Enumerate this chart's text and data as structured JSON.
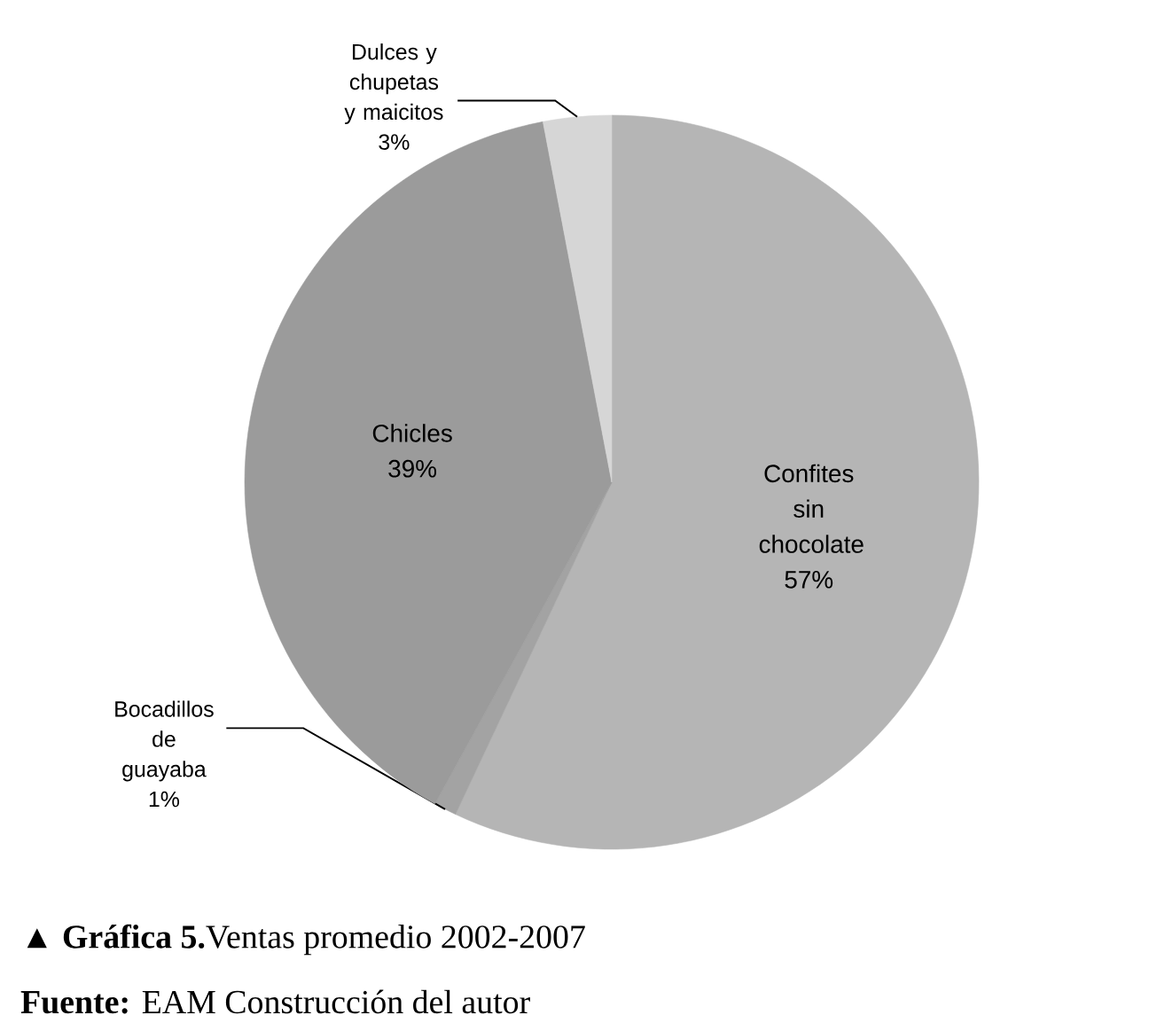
{
  "chart_data": {
    "type": "pie",
    "title": "▲ **Gráfica 5.**Ventas promedio 2002-2007",
    "categories": [
      "Confites sin chocolate",
      "Bocadillos de guayaba",
      "Chicles",
      "Dulces y chupetas y maicitos"
    ],
    "values": [
      57,
      1,
      39,
      3
    ],
    "value_labels": [
      "57%",
      "1%",
      "39%",
      "3%"
    ],
    "colors": [
      "#b5b5b5",
      "#a3a3a3",
      "#9b9b9b",
      "#d6d6d6"
    ],
    "annotations": [
      "**Fuente:** EAM Construcción del autor"
    ],
    "legend": false
  }
}
